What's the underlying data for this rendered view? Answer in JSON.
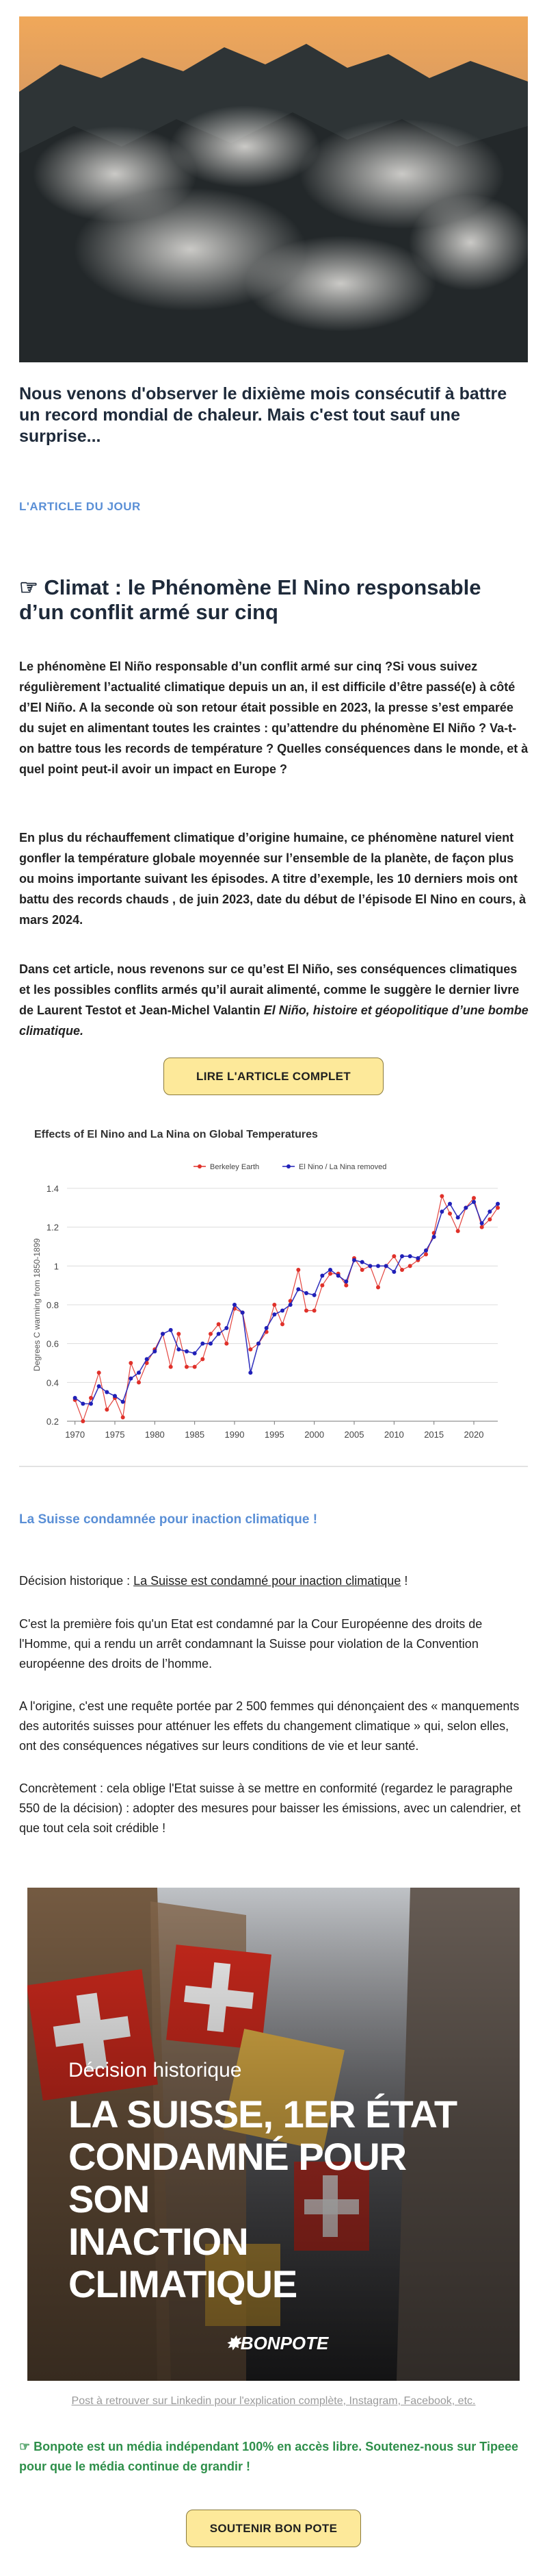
{
  "hero": {
    "image_icon": "wildfire-smoke-forest-image"
  },
  "intro": {
    "text": "Nous venons d'observer le dixième mois consécutif à battre un record mondial de chaleur. Mais c'est tout sauf une surprise..."
  },
  "section_label": "L'ARTICLE DU JOUR",
  "article": {
    "emoji": "☞",
    "title": "Climat : le Phénomène El Nino responsable d’un conflit armé sur cinq",
    "p1": "Le phénomène El Niño responsable d’un conflit armé sur cinq ?Si vous suivez régulièrement l’actualité climatique depuis un an, il est difficile d’être passé(e) à côté d’El Niño. A la seconde où son retour était possible en 2023, la presse s’est emparée du sujet en alimentant toutes les craintes : qu’attendre du phénomène El Niño ? Va-t-on battre tous les records de température ? Quelles conséquences dans le monde, et à quel point peut-il avoir un impact en Europe ?",
    "p2": "En plus du réchauffement climatique d’origine humaine, ce phénomène naturel vient gonfler la température globale  moyennée sur l’ensemble de la planète, de façon plus ou moins importante suivant les épisodes. A titre d’exemple, les 10 derniers mois ont battu des records chauds , de juin 2023, date du début de l’épisode El Nino en cours, à mars 2024.",
    "p3_start": "Dans cet article, nous revenons sur ce qu’est El Niño, ses conséquences climatiques et les possibles conflits armés qu’il aurait alimenté, comme le suggère le dernier livre de Laurent Testot et Jean-Michel Valantin ",
    "p3_italic": "El Niño, histoire et géopolitique d’une bombe climatique.",
    "read_button": "LIRE L'ARTICLE COMPLET"
  },
  "chart_data": {
    "type": "line",
    "title": "Effects of El Nino and La Nina on Global Temperatures",
    "xlabel": "",
    "ylabel": "Degrees C warming from 1850-1899",
    "xlim": [
      1969,
      2023
    ],
    "ylim": [
      0.2,
      1.4
    ],
    "x_ticks": [
      1970,
      1975,
      1980,
      1985,
      1990,
      1995,
      2000,
      2005,
      2010,
      2015,
      2020
    ],
    "y_ticks": [
      0.2,
      0.4,
      0.6,
      0.8,
      1,
      1.2,
      1.4
    ],
    "legend_position": "top-center",
    "x": [
      1970,
      1971,
      1972,
      1973,
      1974,
      1975,
      1976,
      1977,
      1978,
      1979,
      1980,
      1981,
      1982,
      1983,
      1984,
      1985,
      1986,
      1987,
      1988,
      1989,
      1990,
      1991,
      1992,
      1993,
      1994,
      1995,
      1996,
      1997,
      1998,
      1999,
      2000,
      2001,
      2002,
      2003,
      2004,
      2005,
      2006,
      2007,
      2008,
      2009,
      2010,
      2011,
      2012,
      2013,
      2014,
      2015,
      2016,
      2017,
      2018,
      2019,
      2020,
      2021,
      2022,
      2023
    ],
    "series": [
      {
        "name": "Berkeley Earth",
        "color": "#e0312a",
        "values": [
          0.31,
          0.2,
          0.32,
          0.45,
          0.26,
          0.32,
          0.22,
          0.5,
          0.4,
          0.5,
          0.57,
          0.65,
          0.48,
          0.65,
          0.48,
          0.48,
          0.52,
          0.65,
          0.7,
          0.6,
          0.78,
          0.76,
          0.57,
          0.6,
          0.66,
          0.8,
          0.7,
          0.82,
          0.98,
          0.77,
          0.77,
          0.9,
          0.96,
          0.96,
          0.9,
          1.04,
          0.98,
          1.0,
          0.89,
          1.0,
          1.05,
          0.98,
          1.0,
          1.03,
          1.06,
          1.17,
          1.36,
          1.27,
          1.18,
          1.3,
          1.35,
          1.2,
          1.24,
          1.3
        ]
      },
      {
        "name": "El Nino / La Nina removed",
        "color": "#2020b8",
        "values": [
          0.32,
          0.29,
          0.29,
          0.38,
          0.35,
          0.33,
          0.3,
          0.42,
          0.45,
          0.52,
          0.56,
          0.65,
          0.67,
          0.57,
          0.56,
          0.55,
          0.6,
          0.6,
          0.65,
          0.68,
          0.8,
          0.76,
          0.45,
          0.6,
          0.68,
          0.75,
          0.77,
          0.8,
          0.88,
          0.86,
          0.85,
          0.95,
          0.98,
          0.95,
          0.92,
          1.03,
          1.02,
          1.0,
          1.0,
          1.0,
          0.97,
          1.05,
          1.05,
          1.04,
          1.08,
          1.15,
          1.28,
          1.32,
          1.25,
          1.3,
          1.33,
          1.22,
          1.28,
          1.32
        ]
      }
    ]
  },
  "suisse": {
    "title": "La Suisse condamnée pour inaction climatique !",
    "l1_start": "Décision historique : ",
    "l1_link": "La Suisse est condamné pour inaction climatique",
    "l1_end": " !",
    "l2": "C'est la première fois qu'un Etat est condamné par la Cour Européenne des droits de l'Homme, qui a rendu un arrêt condamnant la Suisse pour violation de la Convention européenne des droits de l’homme.",
    "l3": "A l'origine, c'est une requête portée par 2 500 femmes qui dénonçaient des « manquements des autorités suisses pour atténuer les effets du changement climatique » qui, selon elles, ont des conséquences négatives sur leurs conditions de vie et leur santé.",
    "l4": "Concrètement : cela oblige l'Etat suisse à se mettre en conformité (regardez le paragraphe 550 de la décision) : adopter des mesures pour baisser les émissions, avec un calendrier, et que tout cela soit crédible !"
  },
  "poster": {
    "kicker": "Décision historique",
    "headline_1": "LA SUISSE, 1ER ÉTAT",
    "headline_2": "CONDAMNÉ POUR SON",
    "headline_3": "INACTION CLIMATIQUE",
    "brand": "BONPOTE"
  },
  "caption": "Post à retrouver sur Linkedin pour l'explication complète, Instagram, Facebook, etc.",
  "support": {
    "emoji": "☞",
    "text": "Bonpote est un média indépendant 100% en accès libre. Soutenez-nous sur Tipeee pour que le média continue de grandir !",
    "button": "SOUTENIR BON POTE"
  }
}
